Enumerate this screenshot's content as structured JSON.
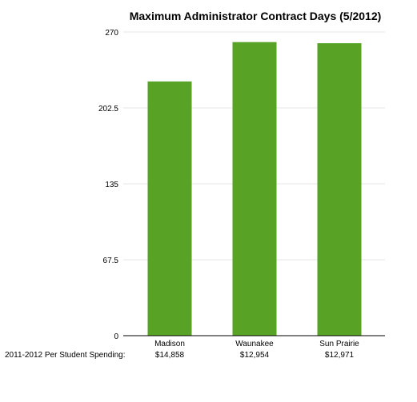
{
  "chart_data": {
    "type": "bar",
    "title": "Maximum Administrator Contract Days (5/2012)",
    "categories": [
      "Madison",
      "Waunakee",
      "Sun Prairie"
    ],
    "values": [
      226,
      261,
      260
    ],
    "ylim": [
      0,
      270
    ],
    "yticks": [
      "0",
      "67.5",
      "135",
      "202.5",
      "270"
    ],
    "grid": true,
    "colors": {
      "bar": "#58a226",
      "grid": "#e6e6e6",
      "axis": "#000000"
    },
    "footer": {
      "label": "2011-2012 Per Student Spending:",
      "values": [
        "$14,858",
        "$12,954",
        "$12,971"
      ]
    }
  }
}
